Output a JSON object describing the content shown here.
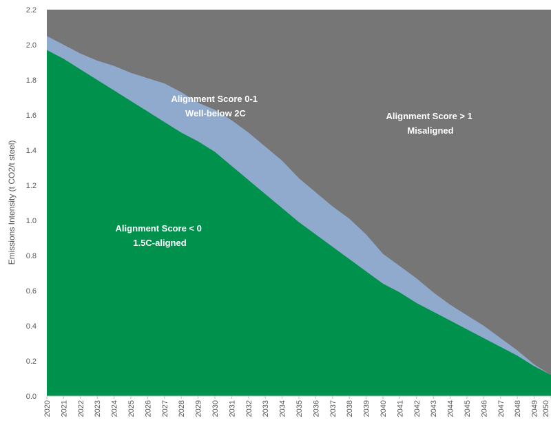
{
  "chart_data": {
    "type": "area",
    "ylabel": "Emissions Intensity (t CO2/t steel)",
    "xlabel": "",
    "ylim": [
      0,
      2.2
    ],
    "yticks": [
      "0.0",
      "0.2",
      "0.4",
      "0.6",
      "0.8",
      "1.0",
      "1.2",
      "1.4",
      "1.6",
      "1.8",
      "2.0",
      "2.2"
    ],
    "x": [
      "2020",
      "2021",
      "2022",
      "2023",
      "2024",
      "2025",
      "2026",
      "2027",
      "2028",
      "2029",
      "2030",
      "2031",
      "2032",
      "2033",
      "2034",
      "2035",
      "2036",
      "2037",
      "2038",
      "2039",
      "2040",
      "2041",
      "2042",
      "2043",
      "2044",
      "2045",
      "2046",
      "2047",
      "2048",
      "2049",
      "2050"
    ],
    "x_tick_labels": [
      "2020",
      "2021",
      "2022",
      "2023",
      "2024",
      "2025",
      "2026",
      "2027",
      "2028",
      "2029",
      "2030",
      "2031",
      "2032",
      "2033",
      "2034",
      "2035",
      "2036",
      "2037",
      "2038",
      "2039",
      "2040",
      "2041",
      "2042",
      "2043",
      "2044",
      "2045",
      "2046",
      "2047",
      "2048",
      "2049",
      "2050"
    ],
    "series": [
      {
        "name": "1.5C-aligned",
        "color": "#00914C",
        "values": [
          1.97,
          1.92,
          1.86,
          1.8,
          1.74,
          1.68,
          1.62,
          1.56,
          1.5,
          1.45,
          1.39,
          1.31,
          1.23,
          1.15,
          1.07,
          0.99,
          0.92,
          0.85,
          0.78,
          0.71,
          0.64,
          0.59,
          0.53,
          0.48,
          0.43,
          0.38,
          0.33,
          0.28,
          0.23,
          0.17,
          0.12
        ]
      },
      {
        "name": "Well-below 2C",
        "color": "#8FAACC",
        "values": [
          2.05,
          2.0,
          1.95,
          1.91,
          1.88,
          1.84,
          1.81,
          1.78,
          1.73,
          1.67,
          1.63,
          1.57,
          1.5,
          1.42,
          1.34,
          1.24,
          1.16,
          1.08,
          1.01,
          0.92,
          0.81,
          0.74,
          0.67,
          0.59,
          0.52,
          0.46,
          0.4,
          0.33,
          0.26,
          0.18,
          0.12
        ]
      },
      {
        "name": "Misaligned",
        "color": "#767676",
        "values": [
          2.2,
          2.2,
          2.2,
          2.2,
          2.2,
          2.2,
          2.2,
          2.2,
          2.2,
          2.2,
          2.2,
          2.2,
          2.2,
          2.2,
          2.2,
          2.2,
          2.2,
          2.2,
          2.2,
          2.2,
          2.2,
          2.2,
          2.2,
          2.2,
          2.2,
          2.2,
          2.2,
          2.2,
          2.2,
          2.2,
          2.2
        ]
      }
    ],
    "annotations": [
      {
        "lines": [
          "Alignment Score < 0",
          "1.5C-aligned"
        ]
      },
      {
        "lines": [
          "Alignment Score 0-1",
          "Well-below 2C"
        ]
      },
      {
        "lines": [
          "Alignment Score > 1",
          "Misaligned"
        ]
      }
    ],
    "grid": false,
    "legend": "none"
  }
}
